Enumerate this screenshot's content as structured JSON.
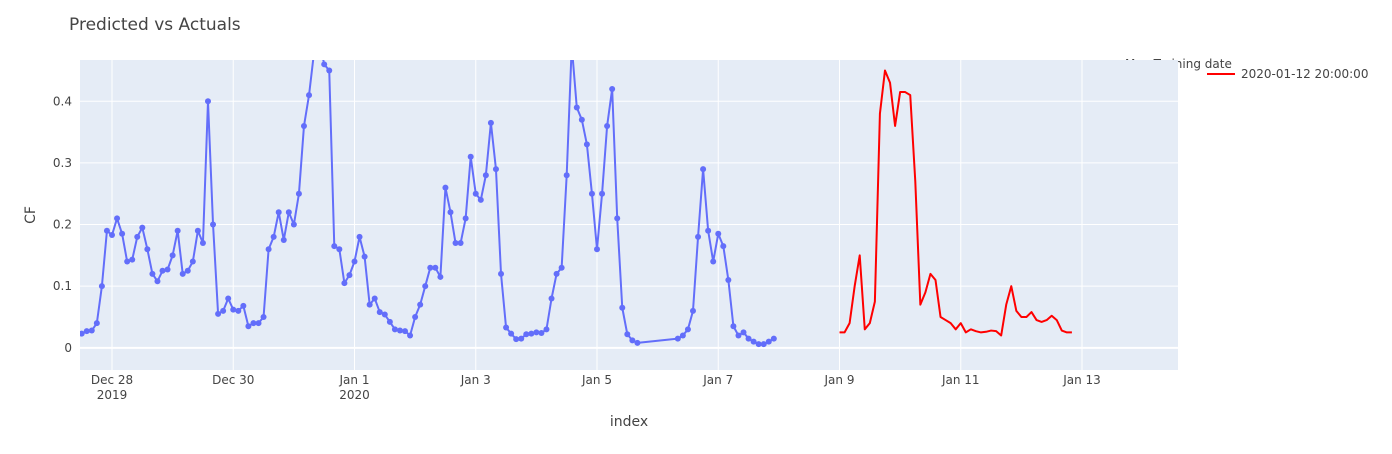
{
  "chart_data": {
    "type": "line",
    "title": "Predicted vs Actuals",
    "x_label": "index",
    "y_label": "CF",
    "legend_title": "Max Training date",
    "grid": true,
    "plot_bgcolor": "#e5ecf6",
    "xlim": [
      "2019-12-27 11:20",
      "2020-01-14 14:00"
    ],
    "ylim": [
      -0.036,
      0.467
    ],
    "yticks": [
      0,
      0.1,
      0.2,
      0.3,
      0.4
    ],
    "xticks": [
      {
        "value": "2019-12-28 00:00",
        "label": "Dec 28",
        "year": "2019"
      },
      {
        "value": "2019-12-30 00:00",
        "label": "Dec 30"
      },
      {
        "value": "2020-01-01 00:00",
        "label": "Jan 1",
        "year": "2020"
      },
      {
        "value": "2020-01-03 00:00",
        "label": "Jan 3"
      },
      {
        "value": "2020-01-05 00:00",
        "label": "Jan 5"
      },
      {
        "value": "2020-01-07 00:00",
        "label": "Jan 7"
      },
      {
        "value": "2020-01-09 00:00",
        "label": "Jan 9"
      },
      {
        "value": "2020-01-11 00:00",
        "label": "Jan 11"
      },
      {
        "value": "2020-01-13 00:00",
        "label": "Jan 13"
      }
    ],
    "series": [
      {
        "color": "#636efa",
        "mode": "lines+markers",
        "x": [
          "2019-12-27 12:00",
          "2019-12-27 14:00",
          "2019-12-27 16:00",
          "2019-12-27 18:00",
          "2019-12-27 20:00",
          "2019-12-27 22:00",
          "2019-12-28 00:00",
          "2019-12-28 02:00",
          "2019-12-28 04:00",
          "2019-12-28 06:00",
          "2019-12-28 08:00",
          "2019-12-28 10:00",
          "2019-12-28 12:00",
          "2019-12-28 14:00",
          "2019-12-28 16:00",
          "2019-12-28 18:00",
          "2019-12-28 20:00",
          "2019-12-28 22:00",
          "2019-12-29 00:00",
          "2019-12-29 02:00",
          "2019-12-29 04:00",
          "2019-12-29 06:00",
          "2019-12-29 08:00",
          "2019-12-29 10:00",
          "2019-12-29 12:00",
          "2019-12-29 14:00",
          "2019-12-29 16:00",
          "2019-12-29 18:00",
          "2019-12-29 20:00",
          "2019-12-29 22:00",
          "2019-12-30 00:00",
          "2019-12-30 02:00",
          "2019-12-30 04:00",
          "2019-12-30 06:00",
          "2019-12-30 08:00",
          "2019-12-30 10:00",
          "2019-12-30 12:00",
          "2019-12-30 14:00",
          "2019-12-30 16:00",
          "2019-12-30 18:00",
          "2019-12-30 20:00",
          "2019-12-30 22:00",
          "2019-12-31 00:00",
          "2019-12-31 02:00",
          "2019-12-31 04:00",
          "2019-12-31 06:00",
          "2019-12-31 08:00",
          "2019-12-31 10:00",
          "2019-12-31 12:00",
          "2019-12-31 14:00",
          "2019-12-31 16:00",
          "2019-12-31 18:00",
          "2019-12-31 20:00",
          "2019-12-31 22:00",
          "2020-01-01 00:00",
          "2020-01-01 02:00",
          "2020-01-01 04:00",
          "2020-01-01 06:00",
          "2020-01-01 08:00",
          "2020-01-01 10:00",
          "2020-01-01 12:00",
          "2020-01-01 14:00",
          "2020-01-01 16:00",
          "2020-01-01 18:00",
          "2020-01-01 20:00",
          "2020-01-01 22:00",
          "2020-01-02 00:00",
          "2020-01-02 02:00",
          "2020-01-02 04:00",
          "2020-01-02 06:00",
          "2020-01-02 08:00",
          "2020-01-02 10:00",
          "2020-01-02 12:00",
          "2020-01-02 14:00",
          "2020-01-02 16:00",
          "2020-01-02 18:00",
          "2020-01-02 20:00",
          "2020-01-02 22:00",
          "2020-01-03 00:00",
          "2020-01-03 02:00",
          "2020-01-03 04:00",
          "2020-01-03 06:00",
          "2020-01-03 08:00",
          "2020-01-03 10:00",
          "2020-01-03 12:00",
          "2020-01-03 14:00",
          "2020-01-03 16:00",
          "2020-01-03 18:00",
          "2020-01-03 20:00",
          "2020-01-03 22:00",
          "2020-01-04 00:00",
          "2020-01-04 02:00",
          "2020-01-04 04:00",
          "2020-01-04 06:00",
          "2020-01-04 08:00",
          "2020-01-04 10:00",
          "2020-01-04 12:00",
          "2020-01-04 14:00",
          "2020-01-04 16:00",
          "2020-01-04 18:00",
          "2020-01-04 20:00",
          "2020-01-04 22:00",
          "2020-01-05 00:00",
          "2020-01-05 02:00",
          "2020-01-05 04:00",
          "2020-01-05 06:00",
          "2020-01-05 08:00",
          "2020-01-05 10:00",
          "2020-01-05 12:00",
          "2020-01-05 14:00",
          "2020-01-05 16:00",
          "2020-01-06 08:00",
          "2020-01-06 10:00",
          "2020-01-06 12:00",
          "2020-01-06 14:00",
          "2020-01-06 16:00",
          "2020-01-06 18:00",
          "2020-01-06 20:00",
          "2020-01-06 22:00",
          "2020-01-07 00:00",
          "2020-01-07 02:00",
          "2020-01-07 04:00",
          "2020-01-07 06:00",
          "2020-01-07 08:00",
          "2020-01-07 10:00",
          "2020-01-07 12:00",
          "2020-01-07 14:00",
          "2020-01-07 16:00",
          "2020-01-07 18:00",
          "2020-01-07 20:00",
          "2020-01-07 22:00"
        ],
        "values": [
          0.023,
          0.027,
          0.028,
          0.04,
          0.1,
          0.19,
          0.183,
          0.21,
          0.185,
          0.14,
          0.143,
          0.18,
          0.195,
          0.16,
          0.12,
          0.108,
          0.125,
          0.127,
          0.15,
          0.19,
          0.12,
          0.125,
          0.14,
          0.19,
          0.17,
          0.4,
          0.2,
          0.055,
          0.06,
          0.08,
          0.062,
          0.06,
          0.068,
          0.035,
          0.04,
          0.04,
          0.05,
          0.16,
          0.18,
          0.22,
          0.175,
          0.22,
          0.2,
          0.25,
          0.36,
          0.41,
          0.48,
          0.5,
          0.46,
          0.45,
          0.165,
          0.16,
          0.105,
          0.118,
          0.14,
          0.18,
          0.148,
          0.07,
          0.08,
          0.058,
          0.054,
          0.042,
          0.03,
          0.028,
          0.027,
          0.02,
          0.05,
          0.07,
          0.1,
          0.13,
          0.13,
          0.115,
          0.26,
          0.22,
          0.17,
          0.17,
          0.21,
          0.31,
          0.25,
          0.24,
          0.28,
          0.365,
          0.29,
          0.12,
          0.033,
          0.023,
          0.014,
          0.015,
          0.022,
          0.023,
          0.025,
          0.024,
          0.03,
          0.08,
          0.12,
          0.13,
          0.28,
          0.49,
          0.39,
          0.37,
          0.33,
          0.25,
          0.16,
          0.25,
          0.36,
          0.42,
          0.21,
          0.065,
          0.022,
          0.012,
          0.008,
          0.015,
          0.02,
          0.03,
          0.06,
          0.18,
          0.29,
          0.19,
          0.14,
          0.185,
          0.165,
          0.11,
          0.035,
          0.02,
          0.025,
          0.015,
          0.01,
          0.006,
          0.006,
          0.01,
          0.015
        ]
      },
      {
        "name": "2020-01-12 20:00:00",
        "color": "#ff0000",
        "mode": "lines",
        "x": [
          "2020-01-09 00:00",
          "2020-01-09 02:00",
          "2020-01-09 04:00",
          "2020-01-09 06:00",
          "2020-01-09 08:00",
          "2020-01-09 10:00",
          "2020-01-09 12:00",
          "2020-01-09 14:00",
          "2020-01-09 16:00",
          "2020-01-09 18:00",
          "2020-01-09 20:00",
          "2020-01-09 22:00",
          "2020-01-10 00:00",
          "2020-01-10 02:00",
          "2020-01-10 04:00",
          "2020-01-10 06:00",
          "2020-01-10 08:00",
          "2020-01-10 10:00",
          "2020-01-10 12:00",
          "2020-01-10 14:00",
          "2020-01-10 16:00",
          "2020-01-10 18:00",
          "2020-01-10 20:00",
          "2020-01-10 22:00",
          "2020-01-11 00:00",
          "2020-01-11 02:00",
          "2020-01-11 04:00",
          "2020-01-11 06:00",
          "2020-01-11 08:00",
          "2020-01-11 10:00",
          "2020-01-11 12:00",
          "2020-01-11 14:00",
          "2020-01-11 16:00",
          "2020-01-11 18:00",
          "2020-01-11 20:00",
          "2020-01-11 22:00",
          "2020-01-12 00:00",
          "2020-01-12 02:00",
          "2020-01-12 04:00",
          "2020-01-12 06:00",
          "2020-01-12 08:00",
          "2020-01-12 10:00",
          "2020-01-12 12:00",
          "2020-01-12 14:00",
          "2020-01-12 16:00",
          "2020-01-12 18:00",
          "2020-01-12 20:00"
        ],
        "values": [
          0.025,
          0.025,
          0.04,
          0.1,
          0.15,
          0.03,
          0.04,
          0.075,
          0.38,
          0.45,
          0.43,
          0.36,
          0.415,
          0.415,
          0.41,
          0.27,
          0.07,
          0.09,
          0.12,
          0.11,
          0.05,
          0.045,
          0.04,
          0.03,
          0.04,
          0.025,
          0.03,
          0.027,
          0.025,
          0.026,
          0.028,
          0.027,
          0.02,
          0.07,
          0.1,
          0.06,
          0.05,
          0.05,
          0.058,
          0.045,
          0.042,
          0.045,
          0.052,
          0.045,
          0.028,
          0.025,
          0.025
        ]
      }
    ]
  }
}
